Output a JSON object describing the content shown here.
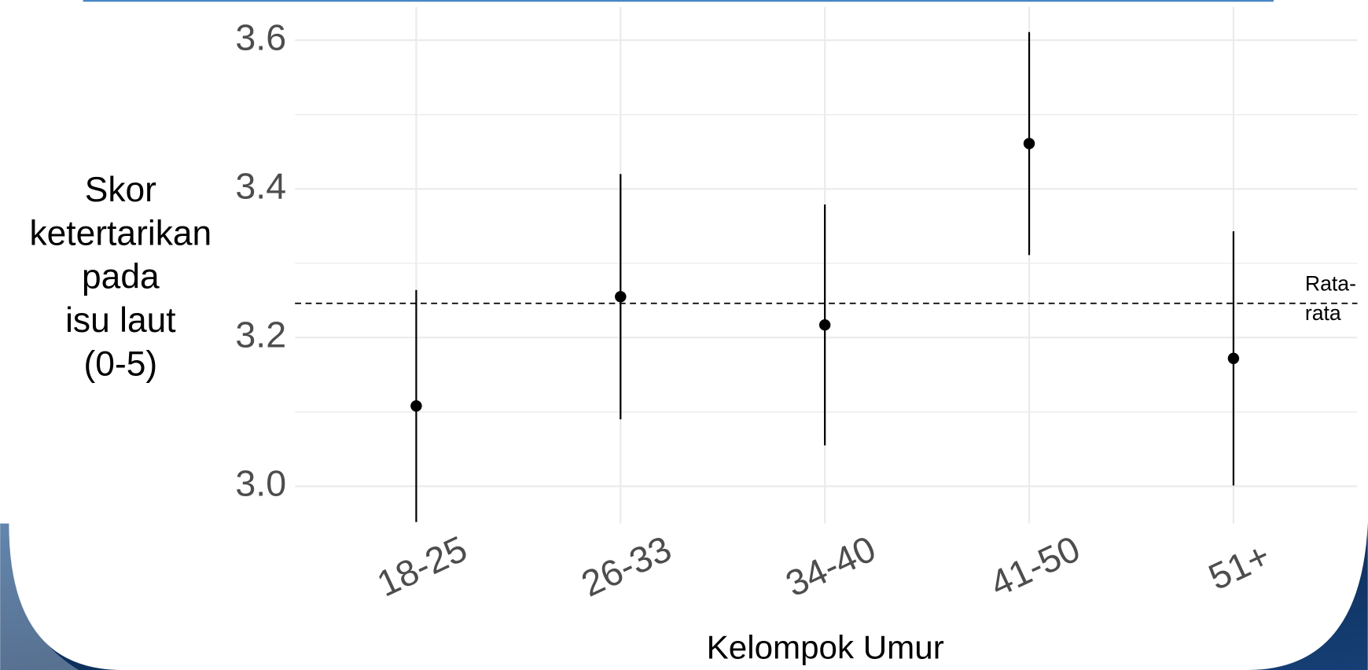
{
  "chart_data": {
    "type": "pointrange",
    "x_label": "Kelompok Umur",
    "y_label": [
      "Skor",
      "ketertarikan",
      "pada",
      "isu laut",
      "(0-5)"
    ],
    "categories": [
      "18-25",
      "26-33",
      "34-40",
      "41-50",
      "51+"
    ],
    "values": [
      3.108,
      3.255,
      3.217,
      3.461,
      3.172
    ],
    "error": [
      0.156,
      0.165,
      0.162,
      0.15,
      0.171
    ],
    "color": "#000000",
    "mean_line": 3.246,
    "mean_label": [
      "Rata-",
      "rata"
    ],
    "ylim": [
      2.95,
      3.64
    ],
    "yticks": [
      {
        "value": 3,
        "label": "3.0"
      },
      3.2,
      3.4,
      3.6
    ],
    "minor_yticks": [
      3.1,
      3.3,
      3.5
    ],
    "grid": true
  }
}
